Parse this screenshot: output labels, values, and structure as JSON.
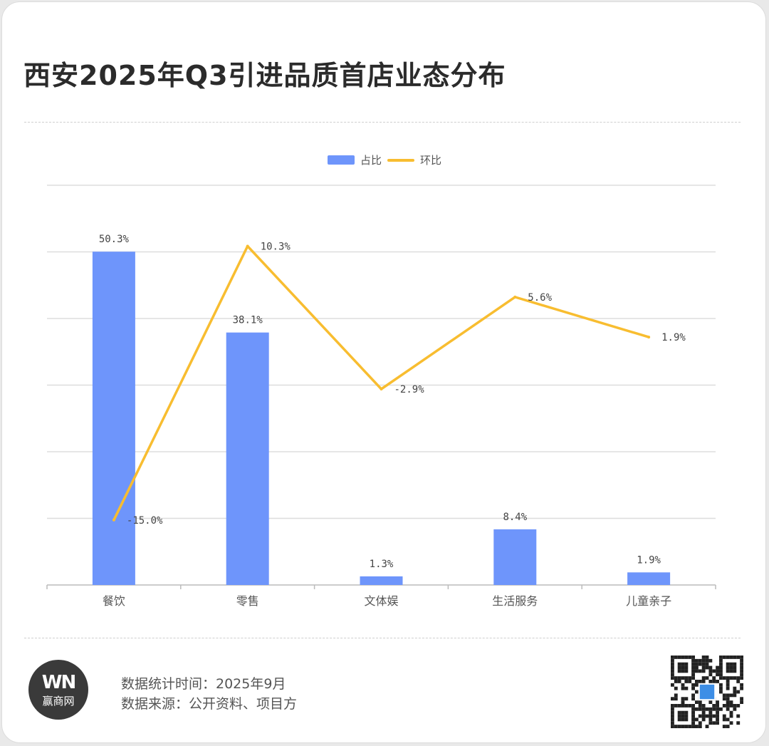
{
  "title": "西安2025年Q3引进品质首店业态分布",
  "legend": {
    "bar_label": "占比",
    "line_label": "环比"
  },
  "colors": {
    "bar": "#6e95fb",
    "line": "#f8bd30",
    "grid": "#dddddd",
    "axis": "#bbbbbb",
    "label": "#444444"
  },
  "chart_data": {
    "type": "bar",
    "categories": [
      "餐饮",
      "零售",
      "文体娱",
      "生活服务",
      "儿童亲子"
    ],
    "series": [
      {
        "name": "占比",
        "type": "bar",
        "values": [
          50.3,
          38.1,
          1.3,
          8.4,
          1.9
        ],
        "labels": [
          "50.3%",
          "38.1%",
          "1.3%",
          "8.4%",
          "1.9%"
        ]
      },
      {
        "name": "环比",
        "type": "line",
        "values": [
          -15.0,
          10.3,
          -2.9,
          5.6,
          1.9
        ],
        "labels": [
          "-15.0%",
          "10.3%",
          "-2.9%",
          "5.6%",
          "1.9%"
        ]
      }
    ],
    "grid": true,
    "legend_position": "top-center"
  },
  "footer": {
    "stat_time": "数据统计时间：2025年9月",
    "source": "数据来源：公开资料、项目方",
    "logo_mark": "WN",
    "logo_name": "赢商网"
  }
}
